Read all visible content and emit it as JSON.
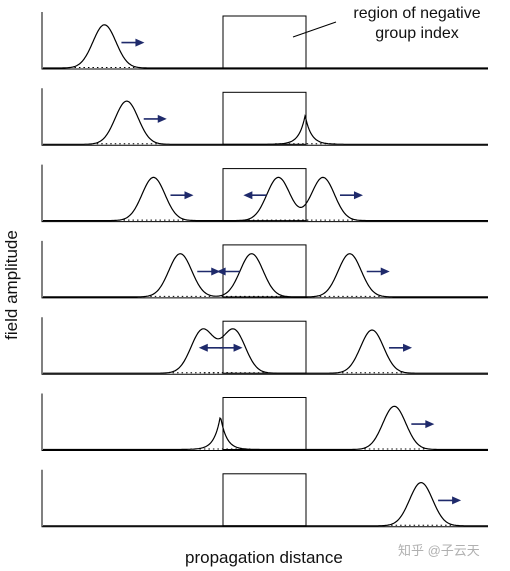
{
  "figure": {
    "ylabel": "field amplitude",
    "xlabel": "propagation distance",
    "annotation_line1": "region of negative",
    "annotation_line2": "group index",
    "watermark": "知乎 @子云天"
  },
  "panels": [
    {
      "pulses": [
        {
          "center": 0.14,
          "amp": 0.9,
          "dir": 1
        }
      ]
    },
    {
      "pulses": [
        {
          "center": 0.19,
          "amp": 0.9,
          "dir": 1
        },
        {
          "center": 0.59,
          "amp": 0.6,
          "cusp": true
        }
      ]
    },
    {
      "pulses": [
        {
          "center": 0.25,
          "amp": 0.9,
          "dir": 1
        },
        {
          "center": 0.53,
          "amp": 0.9,
          "dir": -1
        },
        {
          "center": 0.63,
          "amp": 0.9,
          "dir": 1
        }
      ]
    },
    {
      "pulses": [
        {
          "center": 0.31,
          "amp": 0.9,
          "dir": 1
        },
        {
          "center": 0.47,
          "amp": 0.9,
          "dir": -1
        },
        {
          "center": 0.69,
          "amp": 0.9,
          "dir": 1
        }
      ]
    },
    {
      "pulses": [
        {
          "center": 0.36,
          "amp": 0.9,
          "dir": 1
        },
        {
          "center": 0.43,
          "amp": 0.9,
          "dir": -1
        },
        {
          "center": 0.74,
          "amp": 0.9,
          "dir": 1
        }
      ]
    },
    {
      "pulses": [
        {
          "center": 0.4,
          "amp": 0.7,
          "cusp": true
        },
        {
          "center": 0.79,
          "amp": 0.9,
          "dir": 1
        }
      ]
    },
    {
      "pulses": [
        {
          "center": 0.85,
          "amp": 0.9,
          "dir": 1
        }
      ]
    }
  ],
  "style": {
    "arrow_color": "#1f2a6b",
    "line_color": "#000000"
  }
}
